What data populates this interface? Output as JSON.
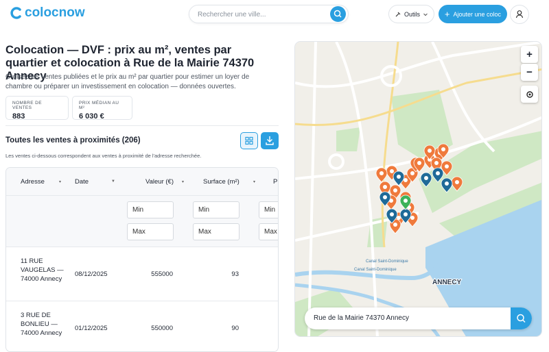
{
  "header": {
    "logo": "colocnow",
    "search_placeholder": "Rechercher une ville...",
    "tools": "Outils",
    "add_button": "Ajouter une coloc"
  },
  "page": {
    "title": "Colocation — DVF : prix au m², ventes par quartier et colocation à Rue de la Mairie 74370 Annecy",
    "description": "Croisez les ventes publiées et le prix au m² par quartier pour estimer un loyer de chambre ou préparer un investissement en colocation — données ouvertes.",
    "stats": [
      {
        "label": "NOMBRE DE VENTES",
        "value": "883"
      },
      {
        "label": "PRIX MÉDIAN AU M²",
        "value": "6 030 €"
      }
    ]
  },
  "sales": {
    "title": "Toutes les ventes à proximités (206)",
    "note": "Les ventes ci-dessous correspondent aux ventes à proximité de l'adresse recherchée.",
    "columns": [
      "Adresse",
      "Date",
      "Valeur (€)",
      "Surface (m²)",
      "Pr"
    ],
    "filters": {
      "min": "Min",
      "max": "Max"
    },
    "rows": [
      [
        "11 RUE VAUGELAS — 74000 Annecy",
        "08/12/2025",
        555000,
        93
      ],
      [
        "3 RUE DE BONLIEU — 74000 Annecy",
        "01/12/2025",
        550000,
        90
      ]
    ]
  },
  "map": {
    "labels": [
      "Canal Saint-Dominique",
      "Canal Saint-Dominique",
      "ANNECY"
    ],
    "search_value": "Rue de la Mairie 74370 Annecy"
  }
}
